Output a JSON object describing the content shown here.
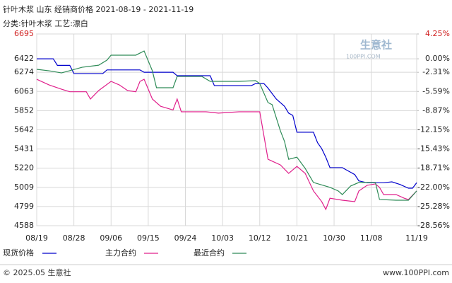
{
  "chart_data": {
    "type": "line",
    "title": "针叶木浆 山东 经销商价格 2021-08-19 - 2021-11-19",
    "subtitle": "分类:针叶木浆 工艺:漂白",
    "watermark": "生意社",
    "watermark_sub": "100PPI.COM",
    "footer_left": "© 2025.05 生意社",
    "footer_right": "www.100PPI.com",
    "xlim": [
      0,
      92
    ],
    "xticks": [
      {
        "value": 0,
        "label": "08/19"
      },
      {
        "value": 9,
        "label": "08/28"
      },
      {
        "value": 18,
        "label": "09/06"
      },
      {
        "value": 27,
        "label": "09/15"
      },
      {
        "value": 36,
        "label": "09/24"
      },
      {
        "value": 45,
        "label": "10/03"
      },
      {
        "value": 54,
        "label": "10/12"
      },
      {
        "value": 63,
        "label": "10/21"
      },
      {
        "value": 72,
        "label": "10/30"
      },
      {
        "value": 81,
        "label": "11/08"
      },
      {
        "value": 92,
        "label": "11/19"
      }
    ],
    "ylim": [
      4588,
      6695
    ],
    "yticks": [
      6695,
      6422,
      6274,
      6063,
      5852,
      5642,
      5431,
      5220,
      5009,
      4799,
      4588
    ],
    "y2lim": [
      -28.56,
      4.25
    ],
    "y2ticks": [
      {
        "value": 4.25,
        "label": "4.25%"
      },
      {
        "value": 0,
        "label": "0.00%"
      },
      {
        "value": -2.31,
        "label": "-2.31%"
      },
      {
        "value": -5.59,
        "label": "-5.59%"
      },
      {
        "value": -8.87,
        "label": "-8.87%"
      },
      {
        "value": -12.15,
        "label": "-12.15%"
      },
      {
        "value": -15.43,
        "label": "-15.43%"
      },
      {
        "value": -18.71,
        "label": "-18.71%"
      },
      {
        "value": -22.0,
        "label": "-22.00%"
      },
      {
        "value": -25.28,
        "label": "-25.28%"
      },
      {
        "value": -28.56,
        "label": "-28.56%"
      }
    ],
    "grid": true,
    "series": [
      {
        "name": "现货价格",
        "color": "#0000cc",
        "x": [
          0,
          4,
          5,
          8,
          9,
          16,
          17,
          25,
          26,
          33,
          34,
          42,
          43,
          52,
          53,
          55,
          56,
          57,
          58,
          59,
          60,
          61,
          62,
          63,
          67,
          68,
          69,
          70,
          71,
          74,
          75,
          77,
          78,
          80,
          84,
          86,
          88,
          90,
          91,
          92
        ],
        "values": [
          6422,
          6422,
          6350,
          6350,
          6260,
          6260,
          6300,
          6300,
          6274,
          6274,
          6236,
          6236,
          6128,
          6128,
          6150,
          6150,
          6100,
          6040,
          5980,
          5940,
          5900,
          5825,
          5800,
          5615,
          5615,
          5500,
          5435,
          5340,
          5226,
          5226,
          5200,
          5150,
          5080,
          5060,
          5060,
          5070,
          5040,
          5000,
          5000,
          5060
        ]
      },
      {
        "name": "主力合约",
        "color": "#e0208c",
        "x": [
          0,
          3,
          6,
          8,
          11,
          12,
          13,
          15,
          18,
          20,
          22,
          24,
          25,
          26,
          28,
          30,
          33,
          34,
          35,
          41,
          44,
          49,
          54,
          56,
          59,
          61,
          63,
          65,
          67,
          69,
          70,
          71,
          74,
          77,
          78,
          80,
          82,
          83,
          84,
          87,
          89,
          90,
          92
        ],
        "values": [
          6197,
          6135,
          6088,
          6060,
          6060,
          6060,
          5980,
          6073,
          6174,
          6135,
          6073,
          6060,
          6174,
          6197,
          5980,
          5900,
          5860,
          5980,
          5840,
          5840,
          5825,
          5840,
          5840,
          5318,
          5256,
          5163,
          5240,
          5163,
          4970,
          4853,
          4767,
          4890,
          4868,
          4853,
          4970,
          5032,
          5047,
          5009,
          4930,
          4930,
          4890,
          4875,
          4970
        ]
      },
      {
        "name": "最近合约",
        "color": "#2e8b57",
        "x": [
          0,
          3,
          6,
          11,
          15,
          17,
          18,
          24,
          26,
          28,
          29,
          33,
          34,
          40,
          42,
          49,
          53,
          54,
          56,
          57,
          59,
          60,
          61,
          63,
          65,
          67,
          71,
          73,
          74,
          76,
          78,
          82,
          83,
          87,
          90,
          92
        ],
        "values": [
          6306,
          6290,
          6267,
          6329,
          6352,
          6407,
          6462,
          6462,
          6508,
          6290,
          6104,
          6104,
          6228,
          6228,
          6174,
          6174,
          6182,
          6150,
          5941,
          5918,
          5630,
          5514,
          5318,
          5341,
          5218,
          5063,
          5009,
          4970,
          4930,
          5024,
          5063,
          5063,
          4876,
          4868,
          4868,
          4970
        ]
      }
    ]
  }
}
